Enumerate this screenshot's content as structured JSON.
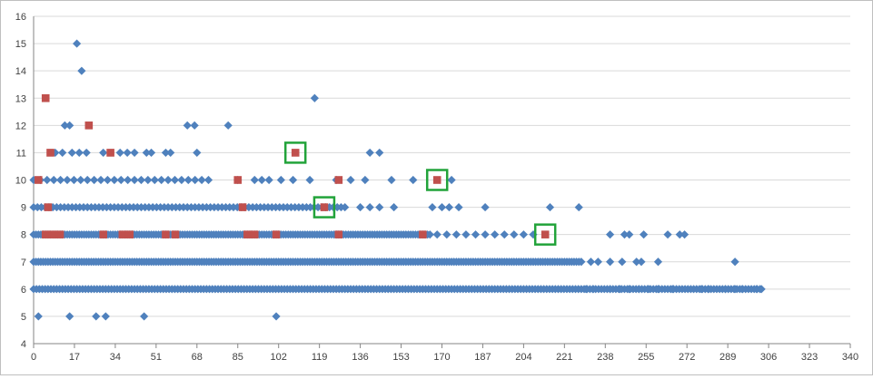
{
  "chart_data": {
    "type": "scatter",
    "title": "",
    "xlabel": "",
    "ylabel": "",
    "xlim": [
      0,
      340
    ],
    "ylim": [
      4,
      16
    ],
    "x_ticks": [
      0,
      17,
      34,
      51,
      68,
      85,
      102,
      119,
      136,
      153,
      170,
      187,
      204,
      221,
      238,
      255,
      272,
      289,
      306,
      323,
      340
    ],
    "y_ticks": [
      4,
      5,
      6,
      7,
      8,
      9,
      10,
      11,
      12,
      13,
      14,
      15,
      16
    ],
    "x_tick_labels": [
      "0",
      "17",
      "34",
      "51",
      "68",
      "85",
      "102",
      "119",
      "136",
      "153",
      "170",
      "187",
      "204",
      "221",
      "238",
      "255",
      "272",
      "289",
      "306",
      "323",
      "340"
    ],
    "y_tick_labels": [
      "4",
      "5",
      "6",
      "7",
      "8",
      "9",
      "10",
      "11",
      "12",
      "13",
      "14",
      "15",
      "16"
    ],
    "grid": "horizontal",
    "legend": "none",
    "colors": {
      "series_a": "#4f81bd",
      "series_b": "#c0504d",
      "highlight": "#22a33a",
      "grid": "#d9d9d9",
      "axis": "#868686"
    },
    "series": [
      {
        "marker": "diamond",
        "dense_ranges": [
          {
            "y": 6,
            "from": 0,
            "to": 303,
            "step": 1.2
          },
          {
            "y": 7,
            "from": 0,
            "to": 228,
            "step": 1.0
          },
          {
            "y": 8,
            "from": 0,
            "to": 165,
            "step": 1.0
          },
          {
            "y": 9,
            "from": 0,
            "to": 130,
            "step": 1.6
          },
          {
            "y": 10,
            "from": 0,
            "to": 75,
            "step": 2.8
          }
        ],
        "points": [
          [
            2,
            5
          ],
          [
            15,
            5
          ],
          [
            26,
            5
          ],
          [
            30,
            5
          ],
          [
            46,
            5
          ],
          [
            101,
            5
          ],
          [
            230,
            6
          ],
          [
            233,
            6
          ],
          [
            240,
            6
          ],
          [
            244,
            6
          ],
          [
            248,
            6
          ],
          [
            252,
            6
          ],
          [
            256,
            6
          ],
          [
            260,
            6
          ],
          [
            266,
            6
          ],
          [
            278,
            6
          ],
          [
            281,
            6
          ],
          [
            288,
            6
          ],
          [
            292,
            6
          ],
          [
            295,
            6
          ],
          [
            301,
            6
          ],
          [
            303,
            6
          ],
          [
            232,
            7
          ],
          [
            235,
            7
          ],
          [
            240,
            7
          ],
          [
            245,
            7
          ],
          [
            251,
            7
          ],
          [
            253,
            7
          ],
          [
            260,
            7
          ],
          [
            292,
            7
          ],
          [
            168,
            8
          ],
          [
            172,
            8
          ],
          [
            176,
            8
          ],
          [
            180,
            8
          ],
          [
            184,
            8
          ],
          [
            188,
            8
          ],
          [
            192,
            8
          ],
          [
            196,
            8
          ],
          [
            200,
            8
          ],
          [
            204,
            8
          ],
          [
            208,
            8
          ],
          [
            240,
            8
          ],
          [
            246,
            8
          ],
          [
            248,
            8
          ],
          [
            254,
            8
          ],
          [
            264,
            8
          ],
          [
            269,
            8
          ],
          [
            271,
            8
          ],
          [
            136,
            9
          ],
          [
            140,
            9
          ],
          [
            144,
            9
          ],
          [
            150,
            9
          ],
          [
            166,
            9
          ],
          [
            170,
            9
          ],
          [
            173,
            9
          ],
          [
            177,
            9
          ],
          [
            188,
            9
          ],
          [
            215,
            9
          ],
          [
            227,
            9
          ],
          [
            85,
            10
          ],
          [
            92,
            10
          ],
          [
            95,
            10
          ],
          [
            98,
            10
          ],
          [
            103,
            10
          ],
          [
            108,
            10
          ],
          [
            115,
            10
          ],
          [
            126,
            10
          ],
          [
            132,
            10
          ],
          [
            138,
            10
          ],
          [
            149,
            10
          ],
          [
            158,
            10
          ],
          [
            174,
            10
          ],
          [
            9,
            11
          ],
          [
            12,
            11
          ],
          [
            16,
            11
          ],
          [
            19,
            11
          ],
          [
            22,
            11
          ],
          [
            29,
            11
          ],
          [
            36,
            11
          ],
          [
            39,
            11
          ],
          [
            42,
            11
          ],
          [
            47,
            11
          ],
          [
            49,
            11
          ],
          [
            55,
            11
          ],
          [
            57,
            11
          ],
          [
            68,
            11
          ],
          [
            140,
            11
          ],
          [
            144,
            11
          ],
          [
            13,
            12
          ],
          [
            15,
            12
          ],
          [
            64,
            12
          ],
          [
            67,
            12
          ],
          [
            81,
            12
          ],
          [
            117,
            13
          ],
          [
            20,
            14
          ],
          [
            18,
            15
          ]
        ]
      },
      {
        "marker": "square",
        "points": [
          [
            5,
            13
          ],
          [
            23,
            12
          ],
          [
            7,
            11
          ],
          [
            32,
            11
          ],
          [
            109,
            11
          ],
          [
            2,
            10
          ],
          [
            85,
            10
          ],
          [
            127,
            10
          ],
          [
            168,
            10
          ],
          [
            6,
            9
          ],
          [
            87,
            9
          ],
          [
            121,
            9
          ],
          [
            5,
            8
          ],
          [
            8,
            8
          ],
          [
            11,
            8
          ],
          [
            29,
            8
          ],
          [
            37,
            8
          ],
          [
            40,
            8
          ],
          [
            55,
            8
          ],
          [
            59,
            8
          ],
          [
            89,
            8
          ],
          [
            92,
            8
          ],
          [
            101,
            8
          ],
          [
            127,
            8
          ],
          [
            162,
            8
          ],
          [
            213,
            8
          ]
        ]
      }
    ],
    "highlighted_points": [
      [
        109,
        11
      ],
      [
        121,
        9
      ],
      [
        168,
        10
      ],
      [
        213,
        8
      ]
    ]
  }
}
